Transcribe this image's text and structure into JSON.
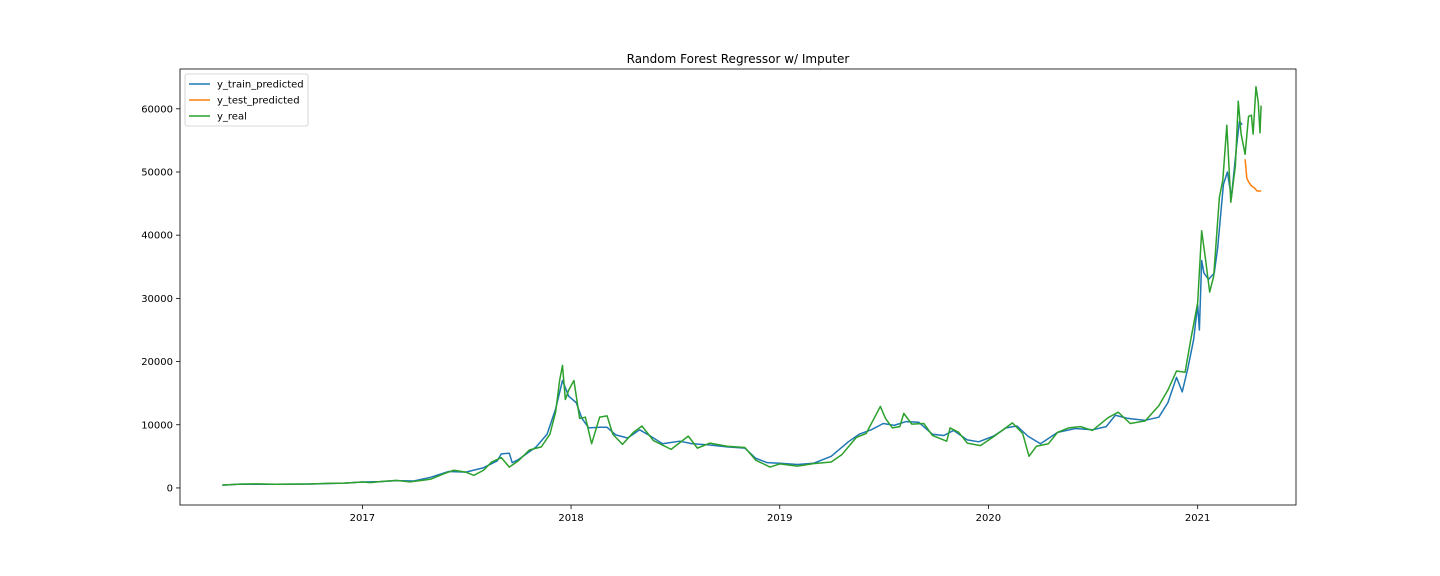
{
  "chart_data": {
    "type": "line",
    "title": "Random Forest Regressor w/ Imputer",
    "xlabel": "",
    "ylabel": "",
    "x_ticks": [
      "2017",
      "2018",
      "2019",
      "2020",
      "2021"
    ],
    "y_ticks": [
      "0",
      "10000",
      "20000",
      "30000",
      "40000",
      "50000",
      "60000"
    ],
    "xlim": [
      "2016-02-17",
      "2021-06-22"
    ],
    "ylim": [
      -2700,
      66300
    ],
    "grid": false,
    "legend_position": "top-left",
    "series": [
      {
        "name": "y_train_predicted",
        "color": "#1f77b4",
        "points": [
          [
            "2016-05-01",
            450
          ],
          [
            "2016-06-01",
            600
          ],
          [
            "2016-08-01",
            580
          ],
          [
            "2016-10-01",
            620
          ],
          [
            "2016-12-01",
            760
          ],
          [
            "2017-01-01",
            950
          ],
          [
            "2017-02-01",
            1000
          ],
          [
            "2017-03-01",
            1150
          ],
          [
            "2017-04-01",
            1100
          ],
          [
            "2017-05-01",
            1700
          ],
          [
            "2017-06-01",
            2600
          ],
          [
            "2017-07-01",
            2500
          ],
          [
            "2017-08-01",
            3200
          ],
          [
            "2017-08-25",
            4300
          ],
          [
            "2017-09-01",
            5400
          ],
          [
            "2017-09-15",
            5500
          ],
          [
            "2017-09-20",
            4000
          ],
          [
            "2017-10-01",
            4500
          ],
          [
            "2017-11-01",
            6500
          ],
          [
            "2017-11-20",
            8500
          ],
          [
            "2017-12-05",
            12500
          ],
          [
            "2017-12-17",
            17000
          ],
          [
            "2017-12-28",
            14500
          ],
          [
            "2018-01-10",
            13500
          ],
          [
            "2018-01-20",
            11000
          ],
          [
            "2018-02-01",
            9500
          ],
          [
            "2018-02-20",
            9600
          ],
          [
            "2018-03-05",
            9600
          ],
          [
            "2018-03-20",
            8400
          ],
          [
            "2018-04-10",
            7900
          ],
          [
            "2018-05-01",
            9200
          ],
          [
            "2018-05-20",
            8200
          ],
          [
            "2018-06-10",
            7000
          ],
          [
            "2018-07-10",
            7400
          ],
          [
            "2018-08-01",
            7000
          ],
          [
            "2018-09-01",
            6800
          ],
          [
            "2018-10-01",
            6500
          ],
          [
            "2018-11-01",
            6300
          ],
          [
            "2018-11-20",
            4700
          ],
          [
            "2018-12-10",
            4000
          ],
          [
            "2019-01-01",
            3900
          ],
          [
            "2019-02-01",
            3700
          ],
          [
            "2019-03-01",
            3900
          ],
          [
            "2019-04-01",
            5000
          ],
          [
            "2019-05-01",
            7300
          ],
          [
            "2019-05-20",
            8500
          ],
          [
            "2019-06-10",
            9200
          ],
          [
            "2019-07-01",
            10200
          ],
          [
            "2019-07-20",
            9900
          ],
          [
            "2019-08-10",
            10500
          ],
          [
            "2019-09-01",
            10400
          ],
          [
            "2019-09-25",
            8500
          ],
          [
            "2019-10-15",
            8300
          ],
          [
            "2019-11-01",
            9100
          ],
          [
            "2019-11-25",
            7600
          ],
          [
            "2019-12-15",
            7300
          ],
          [
            "2020-01-10",
            8200
          ],
          [
            "2020-02-01",
            9500
          ],
          [
            "2020-02-20",
            9800
          ],
          [
            "2020-03-10",
            8200
          ],
          [
            "2020-04-01",
            7000
          ],
          [
            "2020-05-01",
            8800
          ],
          [
            "2020-06-01",
            9400
          ],
          [
            "2020-07-01",
            9200
          ],
          [
            "2020-07-25",
            9700
          ],
          [
            "2020-08-10",
            11500
          ],
          [
            "2020-09-01",
            11000
          ],
          [
            "2020-10-01",
            10700
          ],
          [
            "2020-10-25",
            11200
          ],
          [
            "2020-11-10",
            13500
          ],
          [
            "2020-11-25",
            17500
          ],
          [
            "2020-12-05",
            15200
          ],
          [
            "2020-12-15",
            19000
          ],
          [
            "2020-12-25",
            23500
          ],
          [
            "2021-01-01",
            29000
          ],
          [
            "2021-01-04",
            25000
          ],
          [
            "2021-01-08",
            36000
          ],
          [
            "2021-01-12",
            34000
          ],
          [
            "2021-01-20",
            33000
          ],
          [
            "2021-01-30",
            34000
          ],
          [
            "2021-02-05",
            38000
          ],
          [
            "2021-02-15",
            48000
          ],
          [
            "2021-02-22",
            50000
          ],
          [
            "2021-03-01",
            46000
          ],
          [
            "2021-03-10",
            54000
          ],
          [
            "2021-03-15",
            58000
          ],
          [
            "2021-03-20",
            57500
          ]
        ]
      },
      {
        "name": "y_test_predicted",
        "color": "#ff7f0e",
        "points": [
          [
            "2021-03-25",
            52000
          ],
          [
            "2021-03-28",
            49000
          ],
          [
            "2021-04-01",
            48300
          ],
          [
            "2021-04-05",
            47800
          ],
          [
            "2021-04-10",
            47500
          ],
          [
            "2021-04-15",
            47000
          ],
          [
            "2021-04-22",
            47000
          ]
        ]
      },
      {
        "name": "y_real",
        "color": "#2ca02c",
        "points": [
          [
            "2016-05-01",
            450
          ],
          [
            "2016-06-01",
            600
          ],
          [
            "2016-07-01",
            650
          ],
          [
            "2016-08-01",
            580
          ],
          [
            "2016-09-01",
            610
          ],
          [
            "2016-10-01",
            620
          ],
          [
            "2016-11-01",
            720
          ],
          [
            "2016-12-01",
            760
          ],
          [
            "2017-01-01",
            950
          ],
          [
            "2017-01-15",
            850
          ],
          [
            "2017-02-01",
            1000
          ],
          [
            "2017-03-01",
            1200
          ],
          [
            "2017-03-25",
            950
          ],
          [
            "2017-04-15",
            1200
          ],
          [
            "2017-05-01",
            1400
          ],
          [
            "2017-05-25",
            2300
          ],
          [
            "2017-06-10",
            2800
          ],
          [
            "2017-07-01",
            2500
          ],
          [
            "2017-07-15",
            2000
          ],
          [
            "2017-08-01",
            2800
          ],
          [
            "2017-08-15",
            4100
          ],
          [
            "2017-09-01",
            4800
          ],
          [
            "2017-09-15",
            3300
          ],
          [
            "2017-10-01",
            4300
          ],
          [
            "2017-10-20",
            6000
          ],
          [
            "2017-11-10",
            6500
          ],
          [
            "2017-11-25",
            8500
          ],
          [
            "2017-12-05",
            12000
          ],
          [
            "2017-12-12",
            17000
          ],
          [
            "2017-12-17",
            19400
          ],
          [
            "2017-12-22",
            14000
          ],
          [
            "2017-12-28",
            15500
          ],
          [
            "2018-01-06",
            17000
          ],
          [
            "2018-01-16",
            11000
          ],
          [
            "2018-01-26",
            11200
          ],
          [
            "2018-02-06",
            7000
          ],
          [
            "2018-02-20",
            11200
          ],
          [
            "2018-03-05",
            11400
          ],
          [
            "2018-03-15",
            8500
          ],
          [
            "2018-04-01",
            6900
          ],
          [
            "2018-04-20",
            8800
          ],
          [
            "2018-05-05",
            9800
          ],
          [
            "2018-05-25",
            7500
          ],
          [
            "2018-06-25",
            6100
          ],
          [
            "2018-07-25",
            8200
          ],
          [
            "2018-08-10",
            6300
          ],
          [
            "2018-09-01",
            7100
          ],
          [
            "2018-10-01",
            6600
          ],
          [
            "2018-11-01",
            6400
          ],
          [
            "2018-11-20",
            4400
          ],
          [
            "2018-12-15",
            3300
          ],
          [
            "2019-01-01",
            3800
          ],
          [
            "2019-02-01",
            3450
          ],
          [
            "2019-03-01",
            3850
          ],
          [
            "2019-04-01",
            4100
          ],
          [
            "2019-04-20",
            5300
          ],
          [
            "2019-05-15",
            8000
          ],
          [
            "2019-06-01",
            8600
          ],
          [
            "2019-06-26",
            12900
          ],
          [
            "2019-07-05",
            11000
          ],
          [
            "2019-07-17",
            9500
          ],
          [
            "2019-07-30",
            9700
          ],
          [
            "2019-08-06",
            11800
          ],
          [
            "2019-08-20",
            10100
          ],
          [
            "2019-09-10",
            10200
          ],
          [
            "2019-09-25",
            8300
          ],
          [
            "2019-10-20",
            7400
          ],
          [
            "2019-10-26",
            9500
          ],
          [
            "2019-11-10",
            8800
          ],
          [
            "2019-11-25",
            7100
          ],
          [
            "2019-12-18",
            6700
          ],
          [
            "2020-01-10",
            8100
          ],
          [
            "2020-02-12",
            10300
          ],
          [
            "2020-03-01",
            8600
          ],
          [
            "2020-03-12",
            5000
          ],
          [
            "2020-03-25",
            6600
          ],
          [
            "2020-04-15",
            7000
          ],
          [
            "2020-05-01",
            8800
          ],
          [
            "2020-05-20",
            9500
          ],
          [
            "2020-06-10",
            9700
          ],
          [
            "2020-07-01",
            9100
          ],
          [
            "2020-07-28",
            11100
          ],
          [
            "2020-08-15",
            12000
          ],
          [
            "2020-09-05",
            10200
          ],
          [
            "2020-10-01",
            10600
          ],
          [
            "2020-10-25",
            13000
          ],
          [
            "2020-11-10",
            15500
          ],
          [
            "2020-11-25",
            18500
          ],
          [
            "2020-12-10",
            18300
          ],
          [
            "2020-12-20",
            23500
          ],
          [
            "2021-01-01",
            29300
          ],
          [
            "2021-01-08",
            40700
          ],
          [
            "2021-01-15",
            36000
          ],
          [
            "2021-01-22",
            31000
          ],
          [
            "2021-01-29",
            33500
          ],
          [
            "2021-02-08",
            46000
          ],
          [
            "2021-02-14",
            48700
          ],
          [
            "2021-02-21",
            57400
          ],
          [
            "2021-02-28",
            45200
          ],
          [
            "2021-03-08",
            51000
          ],
          [
            "2021-03-13",
            61200
          ],
          [
            "2021-03-18",
            56000
          ],
          [
            "2021-03-25",
            52800
          ],
          [
            "2021-03-31",
            58800
          ],
          [
            "2021-04-05",
            59000
          ],
          [
            "2021-04-08",
            56000
          ],
          [
            "2021-04-13",
            63500
          ],
          [
            "2021-04-17",
            61000
          ],
          [
            "2021-04-20",
            56200
          ],
          [
            "2021-04-22",
            60500
          ]
        ]
      }
    ]
  }
}
